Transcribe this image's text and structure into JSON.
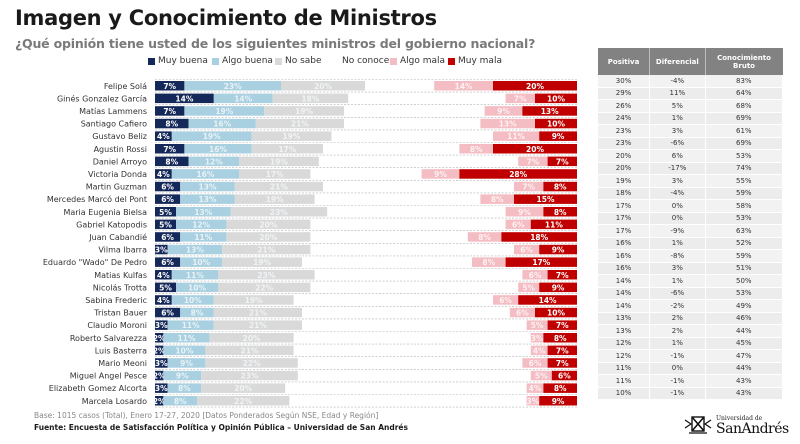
{
  "header": {
    "title": "Imagen y Conocimiento de Ministros",
    "subtitle": "¿Qué opinión tiene usted de los siguientes ministros del gobierno nacional?"
  },
  "legend": [
    {
      "label": "Muy buena",
      "color": "#14285a"
    },
    {
      "label": "Algo buena",
      "color": "#a9d0e0"
    },
    {
      "label": "No sabe",
      "color": "#d9d9d9"
    },
    {
      "label": "No conoce",
      "color": "#ffffff"
    },
    {
      "label": "Algo mala",
      "color": "#f4bcc3"
    },
    {
      "label": "Muy mala",
      "color": "#c00000"
    }
  ],
  "chart_data": {
    "type": "bar",
    "subtype": "diverging-stacked-horizontal",
    "title": "Imagen y Conocimiento de Ministros",
    "subtitle": "¿Qué opinión tiene usted de los siguientes ministros del gobierno nacional?",
    "xlabel": "",
    "ylabel": "",
    "unit": "%",
    "categories": [
      "Felipe Solá",
      "Ginés Gonzalez García",
      "Matías Lammens",
      "Santiago Cafiero",
      "Gustavo Beliz",
      "Agustin Rossi",
      "Daniel Arroyo",
      "Victoria Donda",
      "Martin Guzman",
      "Mercedes Marcó del Pont",
      "Maria Eugenia Bielsa",
      "Gabriel Katopodis",
      "Juan Cabandié",
      "Vilma Ibarra",
      "Eduardo \"Wado\" De Pedro",
      "Matias Kulfas",
      "Nicolás Trotta",
      "Sabina Frederic",
      "Tristan Bauer",
      "Claudio Moroni",
      "Roberto Salvarezza",
      "Luis Basterra",
      "Mario Meoni",
      "Miguel Angel Pesce",
      "Elizabeth Gomez Alcorta",
      "Marcela Losardo"
    ],
    "series": [
      {
        "name": "Muy buena",
        "color": "#14285a",
        "values": [
          7,
          14,
          7,
          8,
          4,
          7,
          8,
          4,
          6,
          6,
          5,
          5,
          6,
          3,
          6,
          4,
          5,
          4,
          6,
          3,
          2,
          2,
          3,
          2,
          3,
          2
        ]
      },
      {
        "name": "Algo buena",
        "color": "#a9d0e0",
        "values": [
          23,
          14,
          19,
          16,
          19,
          16,
          12,
          16,
          13,
          13,
          13,
          12,
          11,
          13,
          10,
          11,
          10,
          10,
          8,
          11,
          11,
          10,
          9,
          9,
          8,
          8
        ]
      },
      {
        "name": "No sabe",
        "color": "#d9d9d9",
        "values": [
          20,
          18,
          19,
          21,
          19,
          17,
          19,
          17,
          21,
          19,
          23,
          20,
          20,
          21,
          19,
          23,
          22,
          19,
          21,
          21,
          20,
          21,
          22,
          23,
          20,
          22
        ]
      },
      {
        "name": "Algo mala",
        "color": "#f4bcc3",
        "values": [
          14,
          7,
          9,
          13,
          11,
          8,
          7,
          9,
          7,
          8,
          9,
          6,
          8,
          6,
          8,
          6,
          5,
          6,
          6,
          5,
          3,
          4,
          6,
          5,
          4,
          3
        ]
      },
      {
        "name": "Muy mala",
        "color": "#c00000",
        "values": [
          20,
          10,
          13,
          10,
          9,
          20,
          7,
          28,
          8,
          15,
          8,
          11,
          18,
          9,
          17,
          7,
          9,
          14,
          10,
          7,
          8,
          7,
          7,
          6,
          8,
          9
        ]
      }
    ],
    "legend_position": "top",
    "grid": false
  },
  "table": {
    "headers": [
      "Positiva",
      "Diferencial",
      "Conocimiento Bruto"
    ],
    "rows": [
      [
        "30%",
        "-4%",
        "83%"
      ],
      [
        "29%",
        "11%",
        "64%"
      ],
      [
        "26%",
        "5%",
        "68%"
      ],
      [
        "24%",
        "1%",
        "69%"
      ],
      [
        "23%",
        "3%",
        "61%"
      ],
      [
        "23%",
        "-6%",
        "69%"
      ],
      [
        "20%",
        "6%",
        "53%"
      ],
      [
        "20%",
        "-17%",
        "74%"
      ],
      [
        "19%",
        "3%",
        "55%"
      ],
      [
        "18%",
        "-4%",
        "59%"
      ],
      [
        "17%",
        "0%",
        "58%"
      ],
      [
        "17%",
        "0%",
        "53%"
      ],
      [
        "17%",
        "-9%",
        "63%"
      ],
      [
        "16%",
        "1%",
        "52%"
      ],
      [
        "16%",
        "-8%",
        "59%"
      ],
      [
        "16%",
        "3%",
        "51%"
      ],
      [
        "14%",
        "1%",
        "50%"
      ],
      [
        "14%",
        "-6%",
        "53%"
      ],
      [
        "14%",
        "-2%",
        "49%"
      ],
      [
        "13%",
        "2%",
        "46%"
      ],
      [
        "13%",
        "2%",
        "44%"
      ],
      [
        "12%",
        "1%",
        "45%"
      ],
      [
        "12%",
        "-1%",
        "47%"
      ],
      [
        "11%",
        "0%",
        "44%"
      ],
      [
        "11%",
        "-1%",
        "43%"
      ],
      [
        "10%",
        "-1%",
        "43%"
      ]
    ]
  },
  "footer": {
    "base": "Base: 1015 casos (Total), Enero 17-27, 2020 [Datos Ponderados Según NSE, Edad y Región]",
    "source": "Fuente: Encuesta de Satisfacción Política y Opinión Pública – Universidad de San Andrés"
  },
  "logo": {
    "line1": "Universidad de",
    "line2": "SanAndrés"
  }
}
